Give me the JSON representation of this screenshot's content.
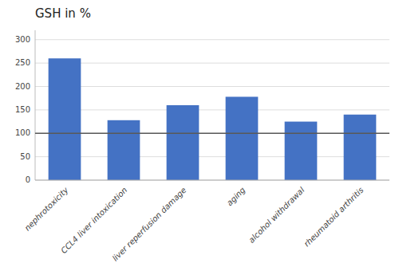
{
  "chart_data": {
    "type": "bar",
    "title": "GSH in %",
    "categories": [
      "nephrotoxicity",
      "CCL4 liver intoxication",
      "liver reperfusion damage",
      "aging",
      "alcohol withdrawal",
      "rheumatoid arthritis"
    ],
    "values": [
      260,
      128,
      160,
      178,
      125,
      140
    ],
    "color": "#4472C4",
    "baseline": 100,
    "ylim": [
      0,
      320
    ],
    "yticks": [
      0,
      50,
      100,
      150,
      200,
      250,
      300
    ],
    "grid": true
  }
}
